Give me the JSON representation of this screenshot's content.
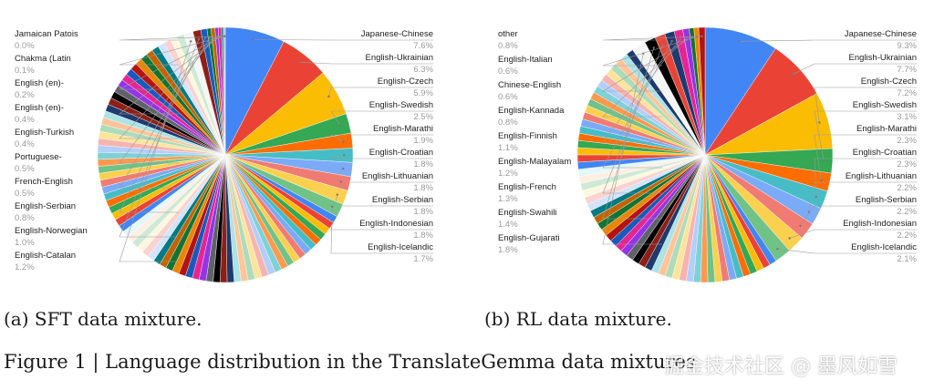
{
  "captions": {
    "a": "(a) SFT data mixture.",
    "b": "(b) RL data mixture.",
    "figure": "Figure 1 | Language distribution in the TranslateGemma data mixtures",
    "watermark": "掘金技术社区 @ 墨风如雪"
  },
  "palette": [
    "#4285f4",
    "#ea4335",
    "#fbbc04",
    "#34a853",
    "#ff6d01",
    "#46bdc6",
    "#7baaf7",
    "#f07b72",
    "#fcd04f",
    "#71c287",
    "#ff994d",
    "#7ed1d7",
    "#b3cefb",
    "#f7b4ae",
    "#fde49b",
    "#aedcba",
    "#ffc599",
    "#ace3e6",
    "#1e3a6e",
    "#8e1f17",
    "#000000",
    "#5f6368",
    "#9334e6",
    "#e52592",
    "#185abc",
    "#b31412",
    "#ea8600",
    "#137333",
    "#c26401",
    "#007b83",
    "#d2e3fc",
    "#fad2cf",
    "#fef7e0",
    "#ceead6",
    "#feefe3",
    "#e4f7fb"
  ],
  "chart_data": [
    {
      "type": "pie",
      "id": "sft",
      "title": "",
      "slices": [
        {
          "label": "Japanese-Chinese",
          "value": 7.6,
          "color": "#4285f4"
        },
        {
          "label": "English-Ukrainian",
          "value": 6.3,
          "color": "#ea4335"
        },
        {
          "label": "English-Czech",
          "value": 5.9,
          "color": "#fbbc04"
        },
        {
          "label": "English-Swedish",
          "value": 2.5,
          "color": "#34a853"
        },
        {
          "label": "English-Marathi",
          "value": 1.9,
          "color": "#ff6d01"
        },
        {
          "label": "English-Croatian",
          "value": 1.8,
          "color": "#46bdc6"
        },
        {
          "label": "English-Lithuanian",
          "value": 1.8,
          "color": "#7baaf7"
        },
        {
          "label": "English-Serbian",
          "value": 1.8,
          "color": "#f07b72"
        },
        {
          "label": "English-Indonesian",
          "value": 1.8,
          "color": "#fcd04f"
        },
        {
          "label": "English-Icelandic",
          "value": 1.7,
          "color": "#71c287"
        },
        {
          "label": "English-Catalan",
          "value": 1.2,
          "color": "#f5f5f5"
        },
        {
          "label": "English-Norwegian",
          "value": 1.0,
          "color": "#8e1f17"
        },
        {
          "label": "English-Serbian",
          "value": 0.8,
          "color": "#185abc"
        },
        {
          "label": "French-English",
          "value": 0.5,
          "color": "#137333"
        },
        {
          "label": "Portuguese-",
          "value": 0.5,
          "color": "#c26401"
        },
        {
          "label": "English-Turkish",
          "value": 0.4,
          "color": "#9334e6"
        },
        {
          "label": "English (en)-",
          "value": 0.4,
          "color": "#e52592"
        },
        {
          "label": "English (en)-",
          "value": 0.2,
          "color": "#007b83"
        },
        {
          "label": "Chakma (Latin",
          "value": 0.1,
          "color": "#5f6368"
        },
        {
          "label": "Jamaican Patois",
          "value": 0.0,
          "color": "#b3cefb"
        }
      ],
      "other_share": 61.8,
      "other_slice_count": 70
    },
    {
      "type": "pie",
      "id": "rl",
      "title": "",
      "slices": [
        {
          "label": "Japanese-Chinese",
          "value": 9.3,
          "color": "#4285f4"
        },
        {
          "label": "English-Ukrainian",
          "value": 7.7,
          "color": "#ea4335"
        },
        {
          "label": "English-Czech",
          "value": 7.2,
          "color": "#fbbc04"
        },
        {
          "label": "English-Swedish",
          "value": 3.1,
          "color": "#34a853"
        },
        {
          "label": "English-Marathi",
          "value": 2.3,
          "color": "#ff6d01"
        },
        {
          "label": "English-Croatian",
          "value": 2.3,
          "color": "#46bdc6"
        },
        {
          "label": "English-Lithuanian",
          "value": 2.2,
          "color": "#7baaf7"
        },
        {
          "label": "English-Serbian",
          "value": 2.2,
          "color": "#f07b72"
        },
        {
          "label": "English-Indonesian",
          "value": 2.2,
          "color": "#fcd04f"
        },
        {
          "label": "English-Icelandic",
          "value": 2.1,
          "color": "#71c287"
        },
        {
          "label": "English-Gujarati",
          "value": 1.8,
          "color": "#f5f5f5"
        },
        {
          "label": "English-Swahili",
          "value": 1.4,
          "color": "#000000"
        },
        {
          "label": "English-French",
          "value": 1.3,
          "color": "#ea4335"
        },
        {
          "label": "English-Malayalam",
          "value": 1.2,
          "color": "#1e3a6e"
        },
        {
          "label": "English-Finnish",
          "value": 1.1,
          "color": "#e52592"
        },
        {
          "label": "English-Kannada",
          "value": 0.8,
          "color": "#9334e6"
        },
        {
          "label": "Chinese-English",
          "value": 0.6,
          "color": "#137333"
        },
        {
          "label": "English-Italian",
          "value": 0.6,
          "color": "#ea8600"
        },
        {
          "label": "other",
          "value": 0.8,
          "color": "#b31412"
        }
      ],
      "other_share": 49.8,
      "other_slice_count": 55
    }
  ]
}
